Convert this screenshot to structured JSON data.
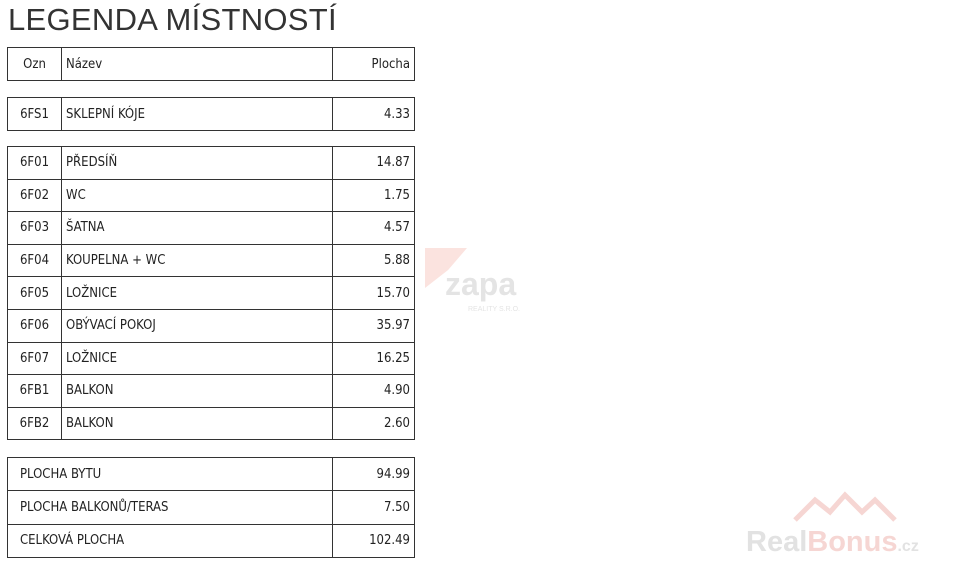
{
  "title": "LEGENDA MÍSTNOSTÍ",
  "header": {
    "ozn": "Ozn",
    "nazev": "Název",
    "plocha": "Plocha"
  },
  "cellar": [
    {
      "ozn": "6FS1",
      "nazev": "SKLEPNÍ KÓJE",
      "plocha": "4.33"
    }
  ],
  "rooms": [
    {
      "ozn": "6F01",
      "nazev": "PŘEDSÍŇ",
      "plocha": "14.87"
    },
    {
      "ozn": "6F02",
      "nazev": "WC",
      "plocha": "1.75"
    },
    {
      "ozn": "6F03",
      "nazev": "ŠATNA",
      "plocha": "4.57"
    },
    {
      "ozn": "6F04",
      "nazev": "KOUPELNA + WC",
      "plocha": "5.88"
    },
    {
      "ozn": "6F05",
      "nazev": "LOŽNICE",
      "plocha": "15.70"
    },
    {
      "ozn": "6F06",
      "nazev": "OBÝVACÍ POKOJ",
      "plocha": "35.97"
    },
    {
      "ozn": "6F07",
      "nazev": "LOŽNICE",
      "plocha": "16.25"
    },
    {
      "ozn": "6FB1",
      "nazev": "BALKON",
      "plocha": "4.90"
    },
    {
      "ozn": "6FB2",
      "nazev": "BALKON",
      "plocha": "2.60"
    }
  ],
  "summary": [
    {
      "label": "PLOCHA BYTU",
      "plocha": "94.99"
    },
    {
      "label": "PLOCHA BALKONŮ/TERAS",
      "plocha": "7.50"
    },
    {
      "label": "CELKOVÁ PLOCHA",
      "plocha": "102.49"
    }
  ],
  "watermarks": {
    "zapa": "zapa",
    "zapa_sub": "REALITY S.R.O.",
    "realbonus_a": "Real",
    "realbonus_b": "Bonus",
    "realbonus_c": ".cz"
  }
}
